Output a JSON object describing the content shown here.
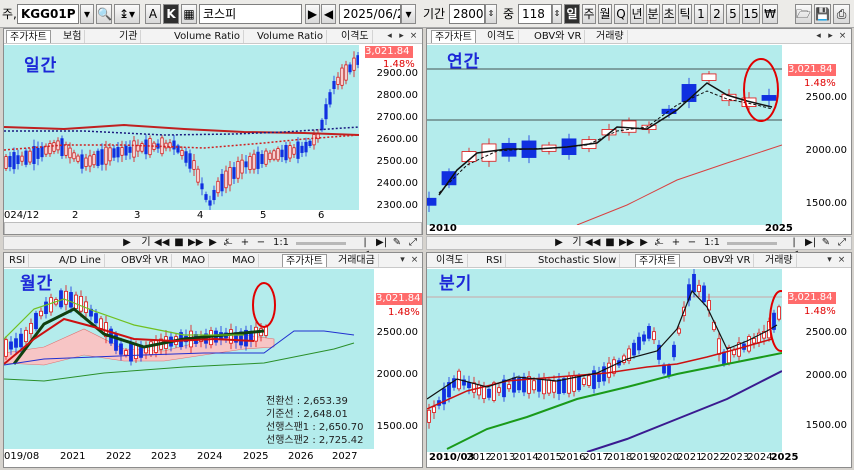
{
  "toolbar": {
    "account_prefix": "주,",
    "code_value": "KGG01P",
    "letter_a": "A",
    "letter_k": "K",
    "name_value": "코스피",
    "date_value": "2025/06/20",
    "period_label": "기간",
    "period_value": "2800",
    "count_label": "중",
    "count_value": "118",
    "period_buttons": [
      "일",
      "주",
      "월",
      "Q",
      "년",
      "분",
      "초",
      "틱",
      "1",
      "2",
      "5",
      "15",
      "₩"
    ]
  },
  "panels": {
    "daily": {
      "title": "일간",
      "tabs": [
        "주가차트",
        "보험",
        "기관",
        "Volume Ratio",
        "Volume Ratio",
        "이격도"
      ],
      "price_tag": "3,021.84",
      "price_change": "1.48%",
      "yticks": [
        "2900.00",
        "2800.00",
        "2700.00",
        "2600.00",
        "2500.00",
        "2400.00",
        "2300.00"
      ],
      "xticks": [
        "024/12",
        "2",
        "3",
        "4",
        "5",
        "6"
      ]
    },
    "yearly": {
      "title": "연간",
      "tabs": [
        "주가차트",
        "이격도",
        "OBV와 VR",
        "거래량"
      ],
      "price_tag": "3,021.84",
      "price_change": "1.48%",
      "yticks": [
        "2500.00",
        "2000.00",
        "1500.00"
      ],
      "xticks": [
        "2010",
        "2025"
      ]
    },
    "monthly": {
      "title": "월간",
      "tabs": [
        "RSI",
        "A/D Line",
        "OBV와 VR",
        "MAO",
        "MAO",
        "주가차트",
        "거래대금"
      ],
      "price_tag": "3,021.84",
      "price_change": "1.48%",
      "yticks": [
        "2500.00",
        "2000.00",
        "1500.00"
      ],
      "xticks": [
        "019/08",
        "2021",
        "2022",
        "2023",
        "2024",
        "2025",
        "2026",
        "2027"
      ],
      "legend": [
        {
          "label": "전환선",
          "value": ": 2,653.39"
        },
        {
          "label": "기준선",
          "value": ": 2,648.01"
        },
        {
          "label": "선행스팬1",
          "value": ": 2,650.70"
        },
        {
          "label": "선행스팬2",
          "value": ": 2,725.42"
        }
      ]
    },
    "quarterly": {
      "title": "분기",
      "tabs": [
        "이격도",
        "RSI",
        "Stochastic Slow",
        "주가차트",
        "OBV와 VR",
        "거래량"
      ],
      "price_tag": "3,021.84",
      "price_change": "1.48%",
      "yticks": [
        "2500.00",
        "2000.00",
        "1500.00"
      ],
      "xticks": [
        "2010/03",
        "2012",
        "2013",
        "2014",
        "2015",
        "2016",
        "2017",
        "2018",
        "2019",
        "2020",
        "2021",
        "2022",
        "2023",
        "2024",
        "2025"
      ]
    }
  },
  "navbar": {
    "label_gi": "기",
    "label_zoom": "1:1"
  },
  "colors": {
    "plot_bg": "#b4ecec",
    "up_candle": "#e01010",
    "down_candle": "#1030e0",
    "price_tag": "#ff6b6b",
    "title": "#1c27d8",
    "highlight_circle": "#e00000"
  }
}
